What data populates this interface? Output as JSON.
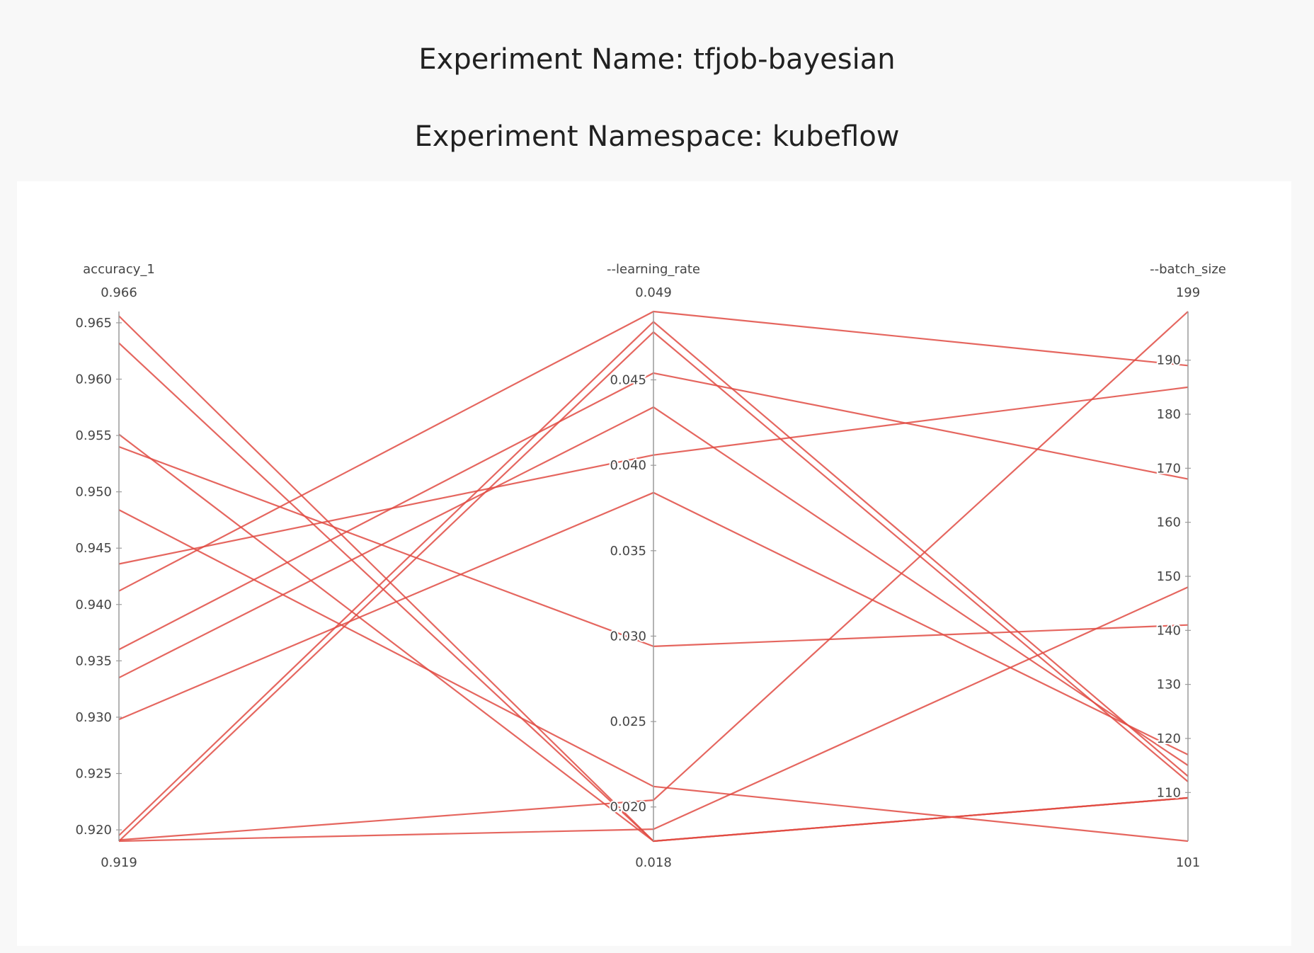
{
  "experiment": {
    "name_line": "Experiment Name: tfjob-bayesian",
    "namespace_line": "Experiment Namespace: kubeflow"
  },
  "chart_data": {
    "type": "parallel-coordinates",
    "line_color": "#e04b43",
    "axes": [
      {
        "name": "accuracy_1",
        "range": [
          0.919,
          0.966
        ],
        "range_labels": [
          "0.919",
          "0.966"
        ],
        "ticks": [
          0.92,
          0.925,
          0.93,
          0.935,
          0.94,
          0.945,
          0.95,
          0.955,
          0.96,
          0.965
        ],
        "tick_labels": [
          "0.920",
          "0.925",
          "0.930",
          "0.935",
          "0.940",
          "0.945",
          "0.950",
          "0.955",
          "0.960",
          "0.965"
        ]
      },
      {
        "name": "--learning_rate",
        "range": [
          0.018,
          0.049
        ],
        "range_labels": [
          "0.018",
          "0.049"
        ],
        "ticks": [
          0.02,
          0.025,
          0.03,
          0.035,
          0.04,
          0.045
        ],
        "tick_labels": [
          "0.020",
          "0.025",
          "0.030",
          "0.035",
          "0.040",
          "0.045"
        ]
      },
      {
        "name": "--batch_size",
        "range": [
          101,
          199
        ],
        "range_labels": [
          "101",
          "199"
        ],
        "ticks": [
          110,
          120,
          130,
          140,
          150,
          160,
          170,
          180,
          190
        ],
        "tick_labels": [
          "110",
          "120",
          "130",
          "140",
          "150",
          "160",
          "170",
          "180",
          "190"
        ]
      }
    ],
    "trials": [
      [
        0.9656,
        0.018,
        109
      ],
      [
        0.9632,
        0.018,
        109
      ],
      [
        0.9551,
        0.018,
        109
      ],
      [
        0.954,
        0.0294,
        141
      ],
      [
        0.9484,
        0.0212,
        101
      ],
      [
        0.9436,
        0.0406,
        185
      ],
      [
        0.9412,
        0.049,
        189
      ],
      [
        0.936,
        0.0454,
        168
      ],
      [
        0.9335,
        0.0434,
        115
      ],
      [
        0.9298,
        0.0384,
        117
      ],
      [
        0.9195,
        0.0484,
        113
      ],
      [
        0.919,
        0.0478,
        112
      ],
      [
        0.9191,
        0.0204,
        199
      ],
      [
        0.919,
        0.0187,
        148
      ]
    ]
  }
}
